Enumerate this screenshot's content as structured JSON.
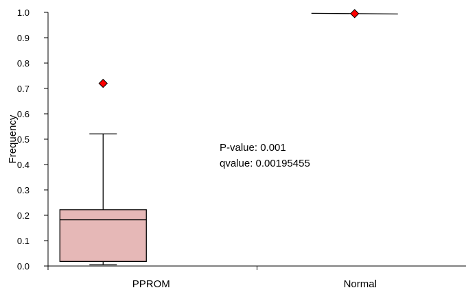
{
  "chart_data": {
    "type": "box",
    "title": "",
    "xlabel": "",
    "ylabel": "Frequency",
    "ylim": [
      0,
      1.0
    ],
    "yticks": [
      "0.0",
      "0.1",
      "0.2",
      "0.3",
      "0.4",
      "0.5",
      "0.6",
      "0.7",
      "0.8",
      "0.9",
      "1.0"
    ],
    "categories": [
      "PPROM",
      "Normal"
    ],
    "series": [
      {
        "category": "PPROM",
        "whisker_low": 0.005,
        "q1": 0.018,
        "median": 0.182,
        "q3": 0.222,
        "whisker_high": 0.521,
        "outliers": [
          0.72
        ],
        "box_color": "#e6b8b7"
      },
      {
        "category": "Normal",
        "whisker_low": 0.995,
        "q1": 0.995,
        "median": 0.995,
        "q3": 0.995,
        "whisker_high": 0.995,
        "outliers": [
          0.995
        ],
        "box_color": "#e6b8b7"
      }
    ],
    "outlier_color": "#ff0000",
    "annotations": [
      "P-value: 0.001",
      "qvalue: 0.00195455"
    ],
    "grid": false
  }
}
